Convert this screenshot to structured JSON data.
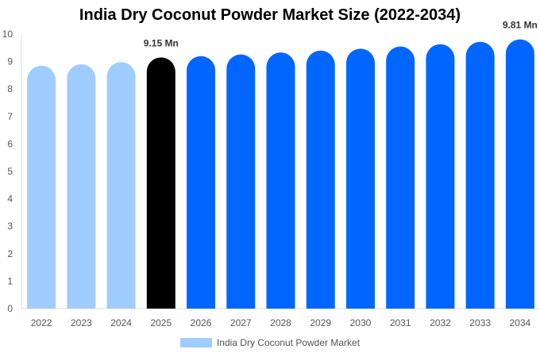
{
  "chart_data": {
    "type": "bar",
    "title": "India Dry Coconut Powder Market Size (2022-2034)",
    "categories": [
      "2022",
      "2023",
      "2024",
      "2025",
      "2026",
      "2027",
      "2028",
      "2029",
      "2030",
      "2031",
      "2032",
      "2033",
      "2034"
    ],
    "series": [
      {
        "name": "India Dry Coconut Powder Market",
        "values": [
          8.85,
          8.9,
          8.98,
          9.15,
          9.2,
          9.26,
          9.33,
          9.4,
          9.47,
          9.55,
          9.63,
          9.72,
          9.81
        ]
      }
    ],
    "ylim": [
      0,
      10
    ],
    "yticks": [
      "0",
      "1",
      "2",
      "3",
      "4",
      "5",
      "6",
      "7",
      "8",
      "9",
      "10"
    ],
    "annotations": [
      {
        "category": "2025",
        "text": "9.15 Mn"
      },
      {
        "category": "2034",
        "text": "9.81 Mn"
      }
    ],
    "colors": {
      "historical": "#a0cdff",
      "current": "#000000",
      "forecast": "#0066ff"
    },
    "grid": false,
    "legend_position": "bottom"
  }
}
